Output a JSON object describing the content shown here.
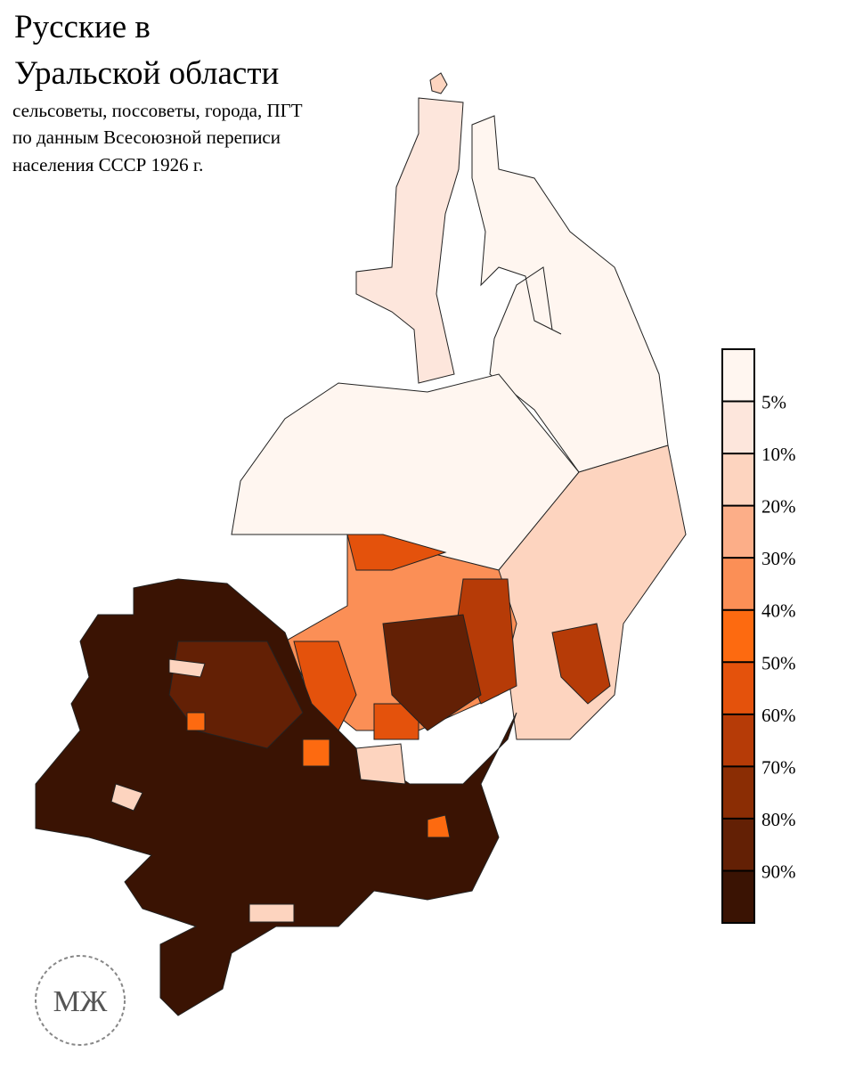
{
  "title": [
    "Русские в",
    "Уральской области"
  ],
  "subtitle": [
    "сельсоветы, поссоветы, города, ПГТ",
    "по данным Всесоюзной переписи",
    "населения СССР 1926 г."
  ],
  "legend": {
    "colors": [
      "#fff6f0",
      "#fde6dc",
      "#fdd4bf",
      "#fcae88",
      "#fb8f56",
      "#fd6a10",
      "#e4520c",
      "#b63b07",
      "#8b2d04",
      "#632005",
      "#3a1303"
    ],
    "ticks": [
      {
        "value": 5,
        "label": "5%"
      },
      {
        "value": 10,
        "label": "10%"
      },
      {
        "value": 20,
        "label": "20%"
      },
      {
        "value": 30,
        "label": "30%"
      },
      {
        "value": 40,
        "label": "40%"
      },
      {
        "value": 50,
        "label": "50%"
      },
      {
        "value": 60,
        "label": "60%"
      },
      {
        "value": 70,
        "label": "70%"
      },
      {
        "value": 80,
        "label": "80%"
      },
      {
        "value": 90,
        "label": "90%"
      }
    ]
  },
  "logo": "МЖ"
}
